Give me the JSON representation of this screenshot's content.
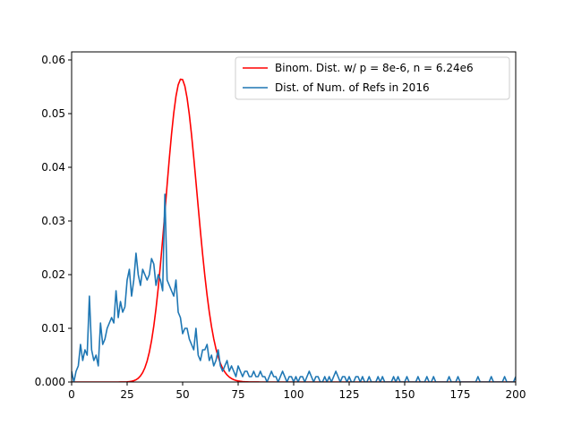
{
  "chart_data": {
    "type": "line",
    "title": "",
    "xlabel": "",
    "ylabel": "",
    "xlim": [
      0,
      200
    ],
    "ylim": [
      0,
      0.0615
    ],
    "grid": false,
    "legend_position": "upper right",
    "x_ticks": [
      0,
      25,
      50,
      75,
      100,
      125,
      150,
      175,
      200
    ],
    "x_tick_labels": [
      "0",
      "25",
      "50",
      "75",
      "100",
      "125",
      "150",
      "175",
      "200"
    ],
    "y_ticks": [
      0.0,
      0.01,
      0.02,
      0.03,
      0.04,
      0.05,
      0.06
    ],
    "y_tick_labels": [
      "0.000",
      "0.01",
      "0.02",
      "0.03",
      "0.04",
      "0.05",
      "0.06"
    ],
    "series": [
      {
        "name": "Binom. Dist. w/ p = 8e-6, n = 6.24e6",
        "color": "#ff0000",
        "kind": "binomial_pmf",
        "n": 6240000,
        "p": 8e-06,
        "x_range": [
          0,
          200
        ]
      },
      {
        "name": "Dist. of Num. of Refs in 2016",
        "color": "#1f77b4",
        "x": [
          0,
          1,
          2,
          3,
          4,
          5,
          6,
          7,
          8,
          9,
          10,
          11,
          12,
          13,
          14,
          15,
          16,
          17,
          18,
          19,
          20,
          21,
          22,
          23,
          24,
          25,
          26,
          27,
          28,
          29,
          30,
          31,
          32,
          33,
          34,
          35,
          36,
          37,
          38,
          39,
          40,
          41,
          42,
          43,
          44,
          45,
          46,
          47,
          48,
          49,
          50,
          51,
          52,
          53,
          54,
          55,
          56,
          57,
          58,
          59,
          60,
          61,
          62,
          63,
          64,
          65,
          66,
          67,
          68,
          69,
          70,
          71,
          72,
          73,
          74,
          75,
          76,
          77,
          78,
          79,
          80,
          81,
          82,
          83,
          84,
          85,
          86,
          87,
          88,
          89,
          90,
          91,
          92,
          93,
          94,
          95,
          96,
          97,
          98,
          99,
          100,
          101,
          102,
          103,
          104,
          105,
          106,
          107,
          108,
          109,
          110,
          111,
          112,
          113,
          114,
          115,
          116,
          117,
          118,
          119,
          120,
          121,
          122,
          123,
          124,
          125,
          126,
          127,
          128,
          129,
          130,
          131,
          132,
          133,
          134,
          135,
          136,
          137,
          138,
          139,
          140,
          141,
          142,
          143,
          144,
          145,
          146,
          147,
          148,
          149,
          150,
          151,
          152,
          153,
          154,
          155,
          156,
          157,
          158,
          159,
          160,
          161,
          162,
          163,
          164,
          165,
          166,
          167,
          168,
          169,
          170,
          171,
          172,
          173,
          174,
          175,
          176,
          177,
          178,
          179,
          180,
          181,
          182,
          183,
          184,
          185,
          186,
          187,
          188,
          189,
          190,
          191,
          192,
          193,
          194,
          195,
          196,
          197,
          198,
          199,
          200
        ],
        "y": [
          0.002,
          0.0,
          0.002,
          0.003,
          0.007,
          0.004,
          0.006,
          0.005,
          0.016,
          0.006,
          0.004,
          0.005,
          0.003,
          0.011,
          0.007,
          0.008,
          0.01,
          0.011,
          0.012,
          0.011,
          0.017,
          0.012,
          0.015,
          0.013,
          0.014,
          0.019,
          0.021,
          0.016,
          0.019,
          0.024,
          0.02,
          0.018,
          0.021,
          0.02,
          0.019,
          0.02,
          0.023,
          0.022,
          0.018,
          0.02,
          0.019,
          0.017,
          0.035,
          0.019,
          0.018,
          0.017,
          0.016,
          0.019,
          0.013,
          0.012,
          0.009,
          0.01,
          0.01,
          0.008,
          0.007,
          0.006,
          0.01,
          0.005,
          0.004,
          0.006,
          0.006,
          0.007,
          0.004,
          0.005,
          0.003,
          0.004,
          0.006,
          0.003,
          0.002,
          0.003,
          0.004,
          0.002,
          0.003,
          0.002,
          0.001,
          0.003,
          0.002,
          0.001,
          0.002,
          0.002,
          0.001,
          0.001,
          0.002,
          0.001,
          0.001,
          0.002,
          0.001,
          0.001,
          0.0,
          0.001,
          0.002,
          0.001,
          0.001,
          0.0,
          0.001,
          0.002,
          0.001,
          0.0,
          0.001,
          0.001,
          0.0,
          0.001,
          0.0,
          0.001,
          0.001,
          0.0,
          0.001,
          0.002,
          0.001,
          0.0,
          0.001,
          0.001,
          0.0,
          0.0,
          0.001,
          0.0,
          0.001,
          0.0,
          0.001,
          0.002,
          0.001,
          0.0,
          0.001,
          0.001,
          0.0,
          0.001,
          0.0,
          0.0,
          0.001,
          0.001,
          0.0,
          0.001,
          0.0,
          0.0,
          0.001,
          0.0,
          0.0,
          0.0,
          0.001,
          0.0,
          0.001,
          0.0,
          0.0,
          0.0,
          0.0,
          0.001,
          0.0,
          0.001,
          0.0,
          0.0,
          0.0,
          0.001,
          0.0,
          0.0,
          0.0,
          0.0,
          0.001,
          0.0,
          0.0,
          0.0,
          0.001,
          0.0,
          0.0,
          0.001,
          0.0,
          0.0,
          0.0,
          0.0,
          0.0,
          0.0,
          0.001,
          0.0,
          0.0,
          0.0,
          0.001,
          0.0,
          0.0,
          0.0,
          0.0,
          0.0,
          0.0,
          0.0,
          0.0,
          0.001,
          0.0,
          0.0,
          0.0,
          0.0,
          0.0,
          0.001,
          0.0,
          0.0,
          0.0,
          0.0,
          0.0,
          0.001,
          0.0,
          0.0,
          0.0,
          0.0,
          0.001
        ]
      }
    ]
  }
}
